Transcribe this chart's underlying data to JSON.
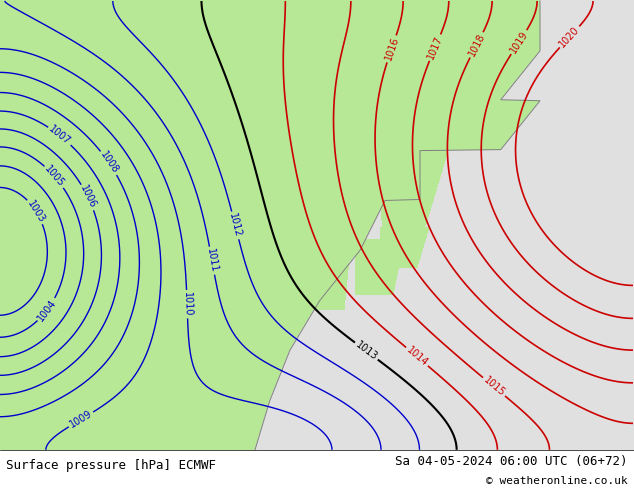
{
  "title_left": "Surface pressure [hPa] ECMWF",
  "title_right": "Sa 04-05-2024 06:00 UTC (06+72)",
  "copyright": "© weatheronline.co.uk",
  "figsize": [
    6.34,
    4.9
  ],
  "dpi": 100,
  "bg_sea_color": "#e0e0e0",
  "land_green_color": "#b8e896",
  "bottom_bar_color": "#ffffff",
  "blue": "#0000cc",
  "red": "#cc0000",
  "black": "#000000",
  "gray_border": "#808080"
}
